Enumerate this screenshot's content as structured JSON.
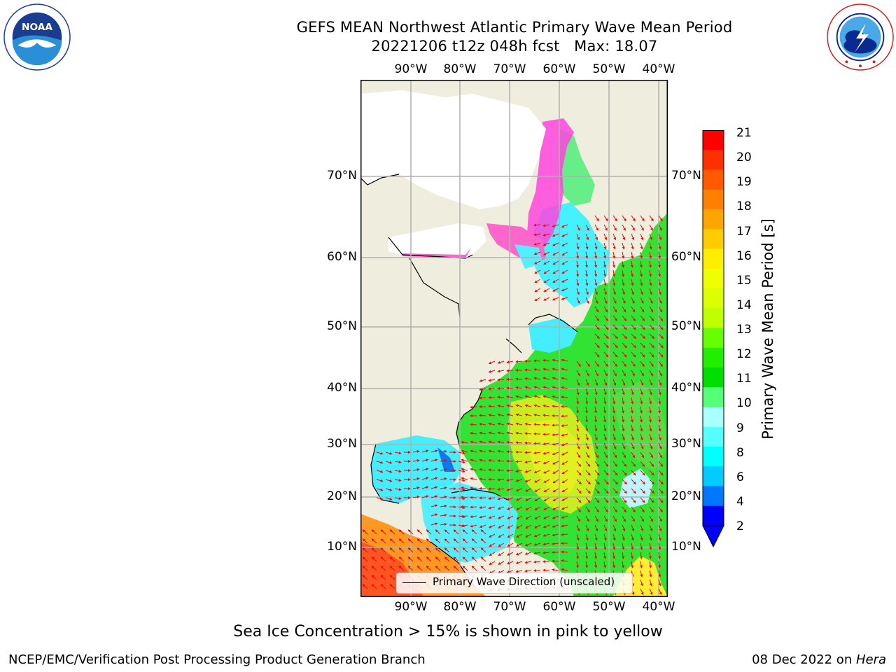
{
  "title": {
    "line1": "GEFS MEAN Northwest Atlantic Primary Wave Mean Period",
    "line2": "20221206 t12z 048h fcst   Max: 18.07"
  },
  "logos": {
    "left": {
      "name": "noaa-logo",
      "text": "NOAA",
      "ring_text": "NATIONAL OCEANIC AND ATMOSPHERIC ADMINISTRATION · U.S. DEPARTMENT OF COMMERCE"
    },
    "right": {
      "name": "nws-logo",
      "ring_text": "NATIONAL WEATHER SERVICE"
    }
  },
  "map": {
    "lon_ticks": [
      "90°W",
      "80°W",
      "70°W",
      "60°W",
      "50°W",
      "40°W"
    ],
    "lat_ticks": [
      "70°N",
      "60°N",
      "50°N",
      "40°N",
      "30°N",
      "20°N",
      "10°N"
    ],
    "legend_label": "Primary Wave Direction (unscaled)",
    "colors": {
      "land": "#efedde",
      "ice_free_land": "#ffffff",
      "grid": "#b0b0b0",
      "arrows": "#ff0000",
      "coastline": "#000000"
    }
  },
  "colorbar": {
    "title": "Primary Wave Mean Period [s]",
    "labels": [
      "21",
      "20",
      "19",
      "18",
      "17",
      "16",
      "15",
      "14",
      "13",
      "12",
      "11",
      "10",
      "9",
      "8",
      "6",
      "4",
      "2"
    ],
    "colors": [
      "#ff0000",
      "#ff3000",
      "#ff5a00",
      "#ff8000",
      "#ffa500",
      "#ffcc00",
      "#ffee00",
      "#f0ff00",
      "#dcff00",
      "#c0ff00",
      "#66ff00",
      "#22ee00",
      "#00dd00",
      "#55ff77",
      "#aaffff",
      "#55ffff",
      "#00ffff",
      "#00ccff",
      "#0077ff",
      "#0000ff"
    ]
  },
  "notes": {
    "sea_ice": "Sea Ice Concentration > 15% is shown in pink to yellow"
  },
  "footer": {
    "left": "NCEP/EMC/Verification Post Processing Product Generation Branch",
    "right_prefix": "08 Dec 2022 on ",
    "right_host": "Hera"
  }
}
